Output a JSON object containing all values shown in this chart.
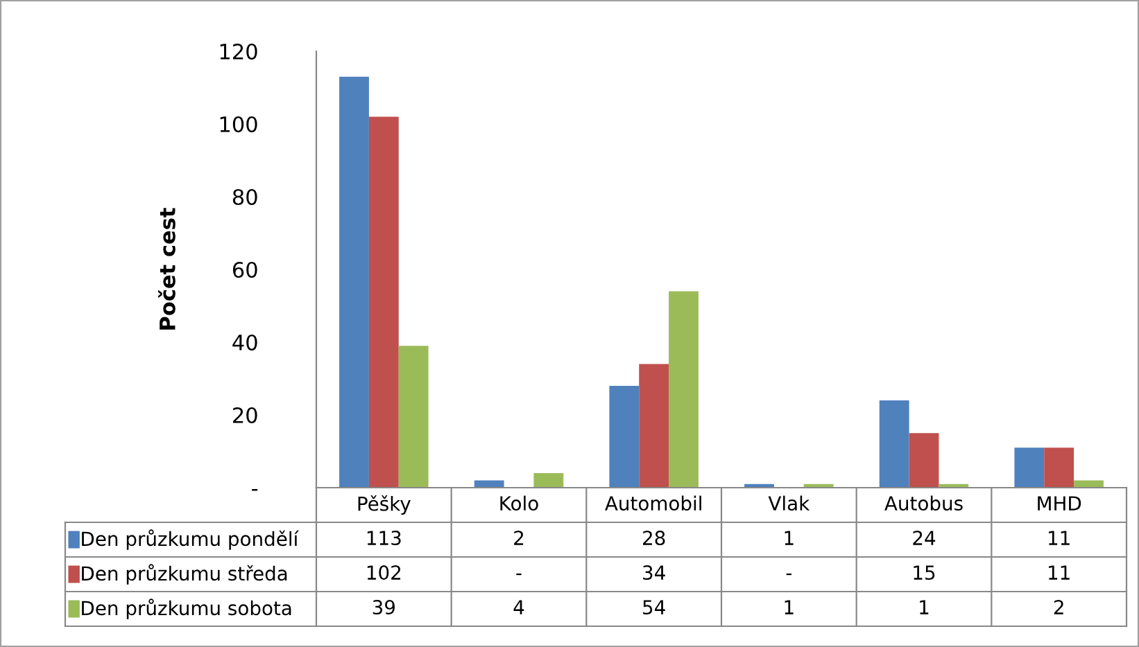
{
  "chart_data": {
    "type": "bar",
    "ylabel": "Počet cest",
    "categories": [
      "Pěšky",
      "Kolo",
      "Automobil",
      "Vlak",
      "Autobus",
      "MHD"
    ],
    "series": [
      {
        "name": "Den průzkumu pondělí",
        "color": "#4f81bd",
        "values": [
          113,
          2,
          28,
          1,
          24,
          11
        ],
        "value_labels": [
          "113",
          "2",
          "28",
          "1",
          "24",
          "11"
        ]
      },
      {
        "name": "Den průzkumu středa",
        "color": "#c0504d",
        "values": [
          102,
          null,
          34,
          null,
          15,
          11
        ],
        "value_labels": [
          "102",
          "-",
          "34",
          "-",
          "15",
          "11"
        ]
      },
      {
        "name": "Den průzkumu sobota",
        "color": "#9bbb59",
        "values": [
          39,
          4,
          54,
          1,
          1,
          2
        ],
        "value_labels": [
          "39",
          "4",
          "54",
          "1",
          "1",
          "2"
        ]
      }
    ],
    "ylim": [
      0,
      120
    ],
    "yticks": [
      {
        "value": 0,
        "label": "-"
      },
      20,
      40,
      60,
      80,
      100,
      120
    ],
    "grid": false,
    "legend": "bottom left"
  }
}
